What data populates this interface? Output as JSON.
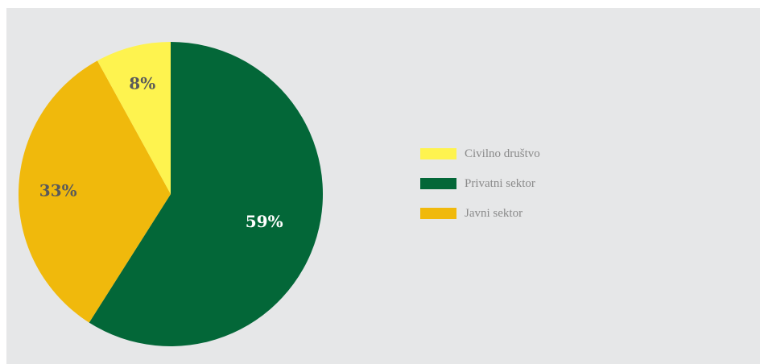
{
  "chart_data": {
    "type": "pie",
    "title": "",
    "series": [
      {
        "name": "Civilno društvo",
        "value": 8,
        "label": "8%",
        "color": "#fef34f",
        "label_color": "#5a5a5a"
      },
      {
        "name": "Privatni sektor",
        "value": 59,
        "label": "59%",
        "color": "#036738",
        "label_color": "#ffffff"
      },
      {
        "name": "Javni sektor",
        "value": 33,
        "label": "33%",
        "color": "#f0b90c",
        "label_color": "#5a5a5a"
      }
    ],
    "legend_position": "right"
  }
}
